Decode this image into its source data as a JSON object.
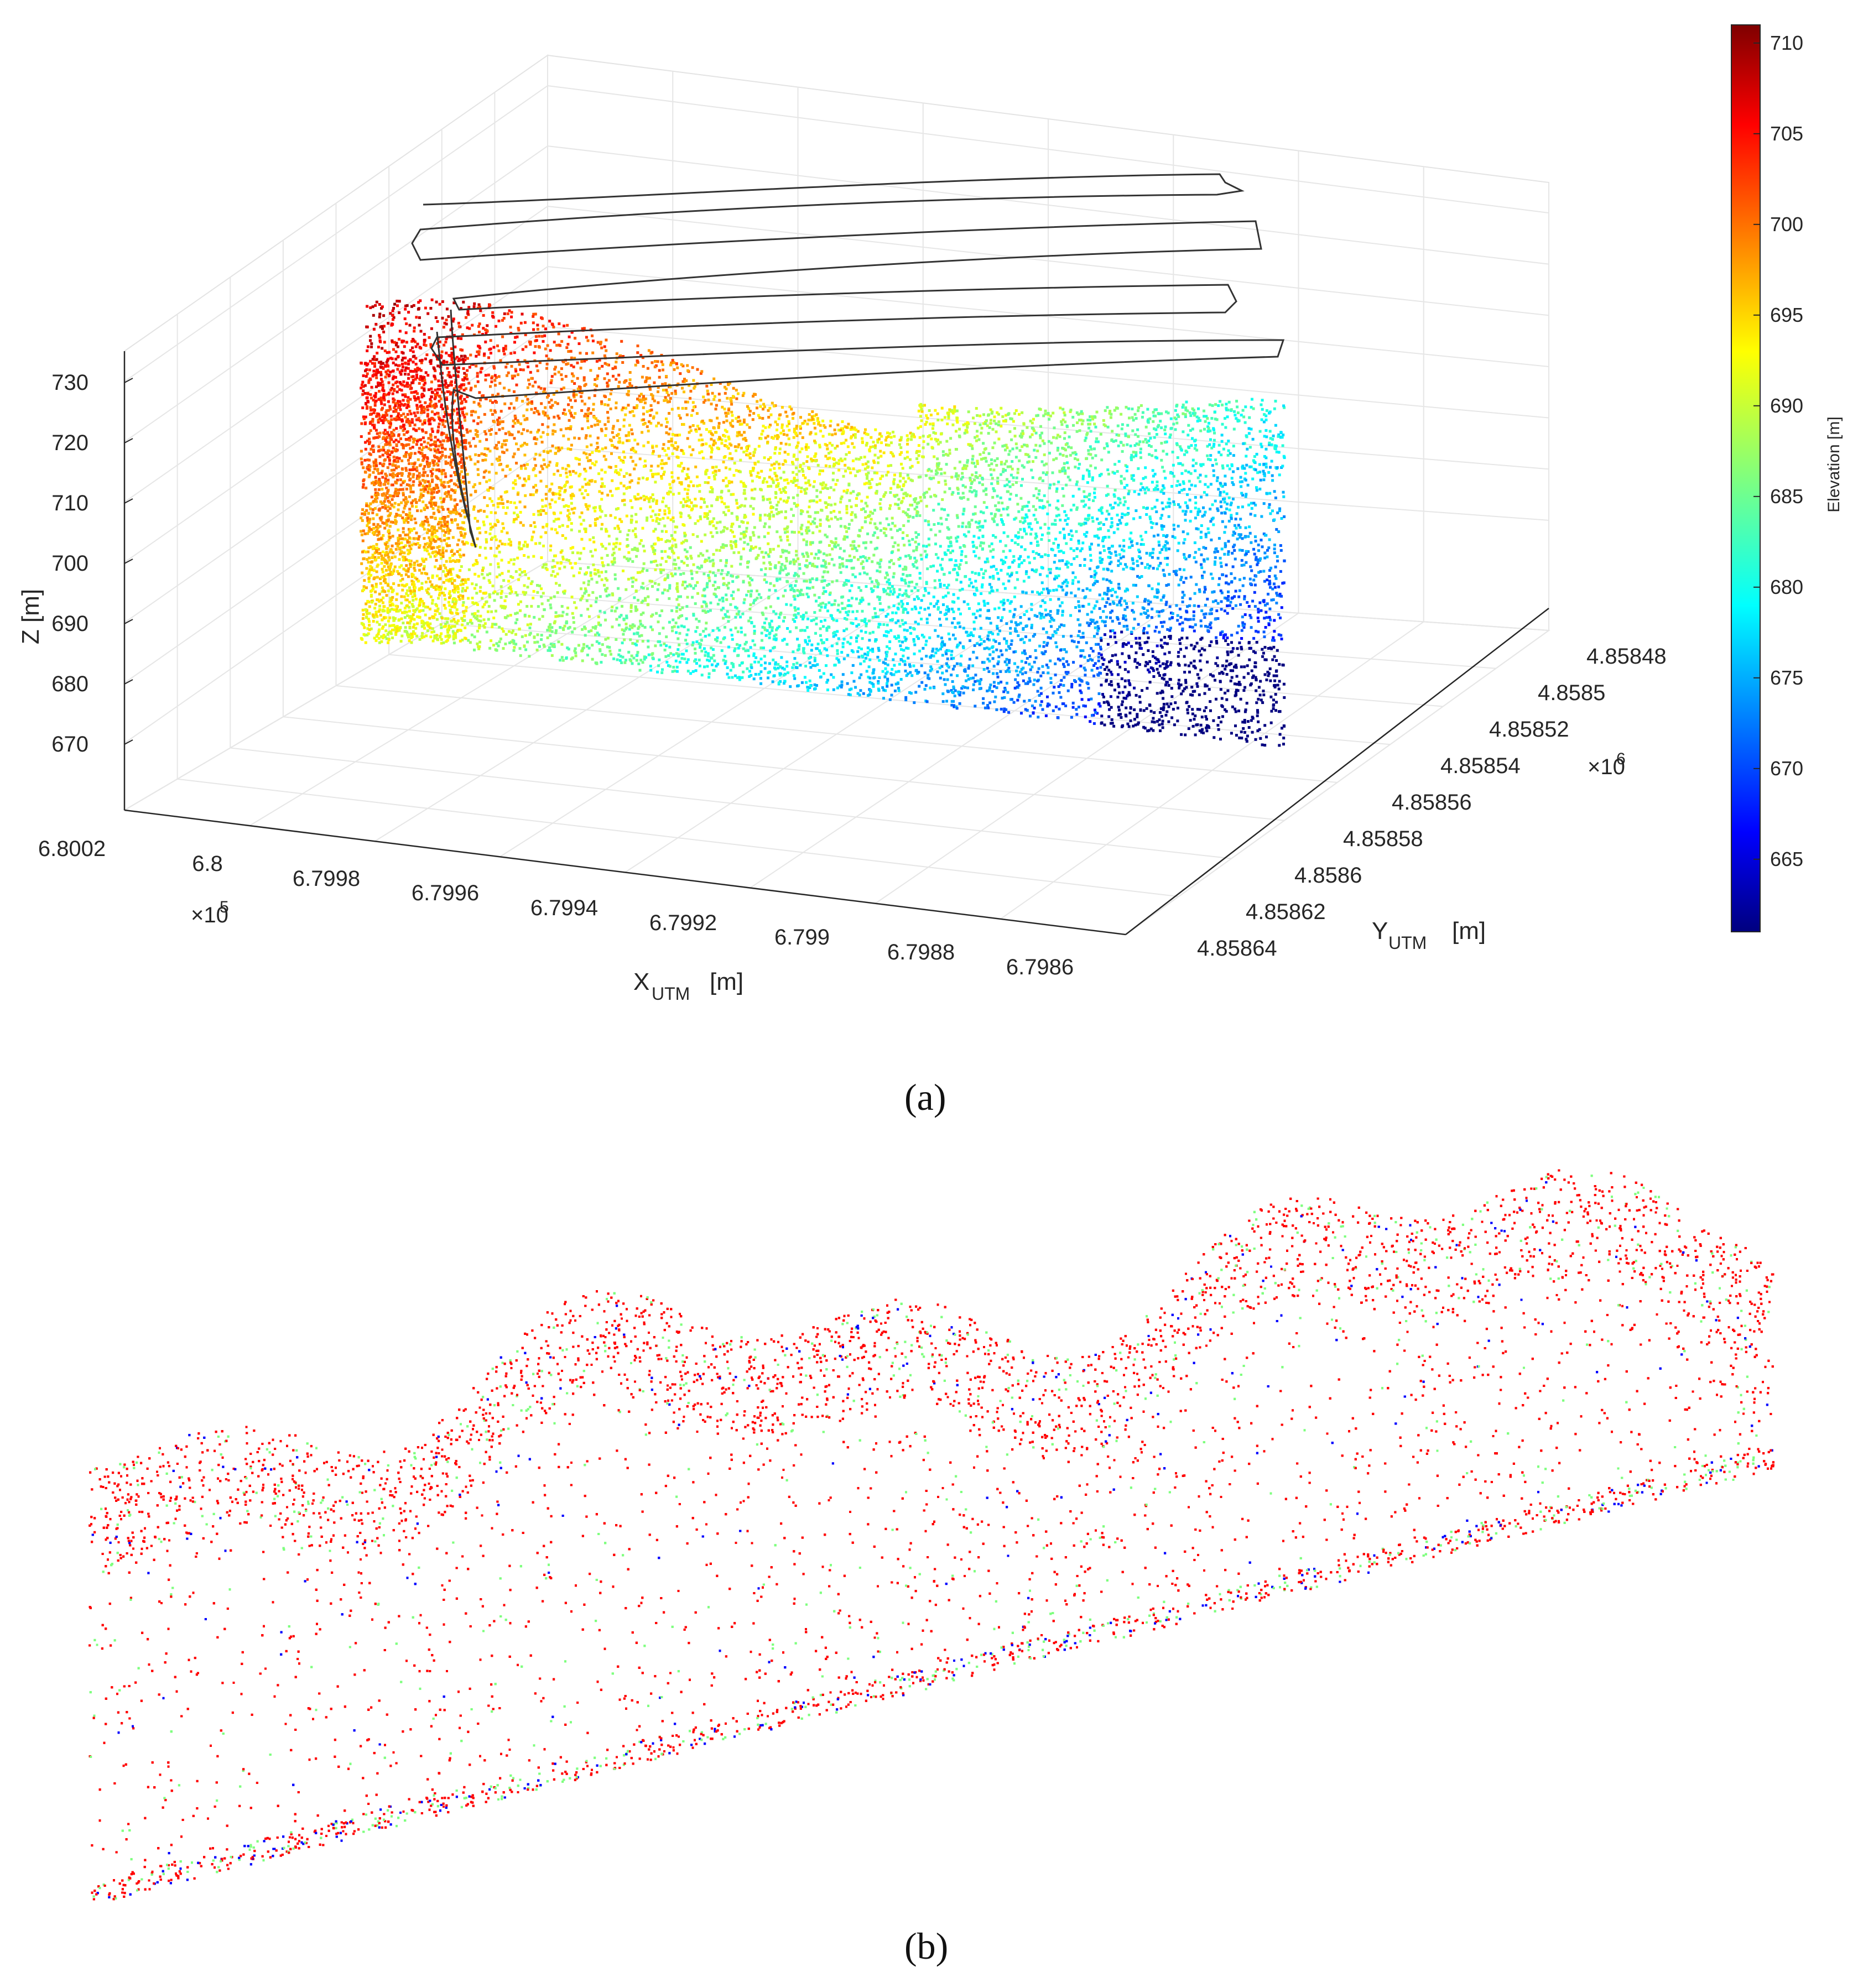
{
  "figure": {
    "caption_a": "(a)",
    "caption_b": "(b)"
  },
  "chart_data": [
    {
      "type": "scatter",
      "title": "",
      "xlabel": "X",
      "xlabel_subscript": "UTM",
      "xlabel_unit": "[m]",
      "ylabel": "Y",
      "ylabel_subscript": "UTM",
      "ylabel_unit": "[m]",
      "zlabel": "Z [m]",
      "x_ticks": [
        "6.8002",
        "6.8",
        "6.7998",
        "6.7996",
        "6.7994",
        "6.7992",
        "6.799",
        "6.7988",
        "6.7986"
      ],
      "x_exponent_base": "×10",
      "x_exponent": "5",
      "y_ticks": [
        "4.85848",
        "4.8585",
        "4.85852",
        "4.85854",
        "4.85856",
        "4.85858",
        "4.8586",
        "4.85862",
        "4.85864"
      ],
      "y_exponent_base": "×10",
      "y_exponent": "6",
      "z_ticks": [
        "730",
        "720",
        "710",
        "700",
        "690",
        "680",
        "670"
      ],
      "xlim": [
        679850,
        680020
      ],
      "ylim": [
        4858480,
        4858640
      ],
      "zlim": [
        664,
        736
      ],
      "grid": true,
      "colorbar": {
        "label": "Elevation [m]",
        "ticks": [
          "710",
          "705",
          "700",
          "695",
          "690",
          "685",
          "680",
          "675",
          "670",
          "665"
        ],
        "range": [
          661,
          711
        ],
        "colormap": "jet"
      },
      "series": [
        {
          "description": "point cloud colored by elevation"
        },
        {
          "description": "flight trajectory",
          "color": "#333333"
        }
      ]
    },
    {
      "type": "scatter",
      "title": "",
      "xlabel": "",
      "ylabel": "",
      "series": [
        {
          "color": "#ff0000"
        },
        {
          "color": "#7fff7f"
        },
        {
          "color": "#0000ff"
        }
      ]
    }
  ]
}
